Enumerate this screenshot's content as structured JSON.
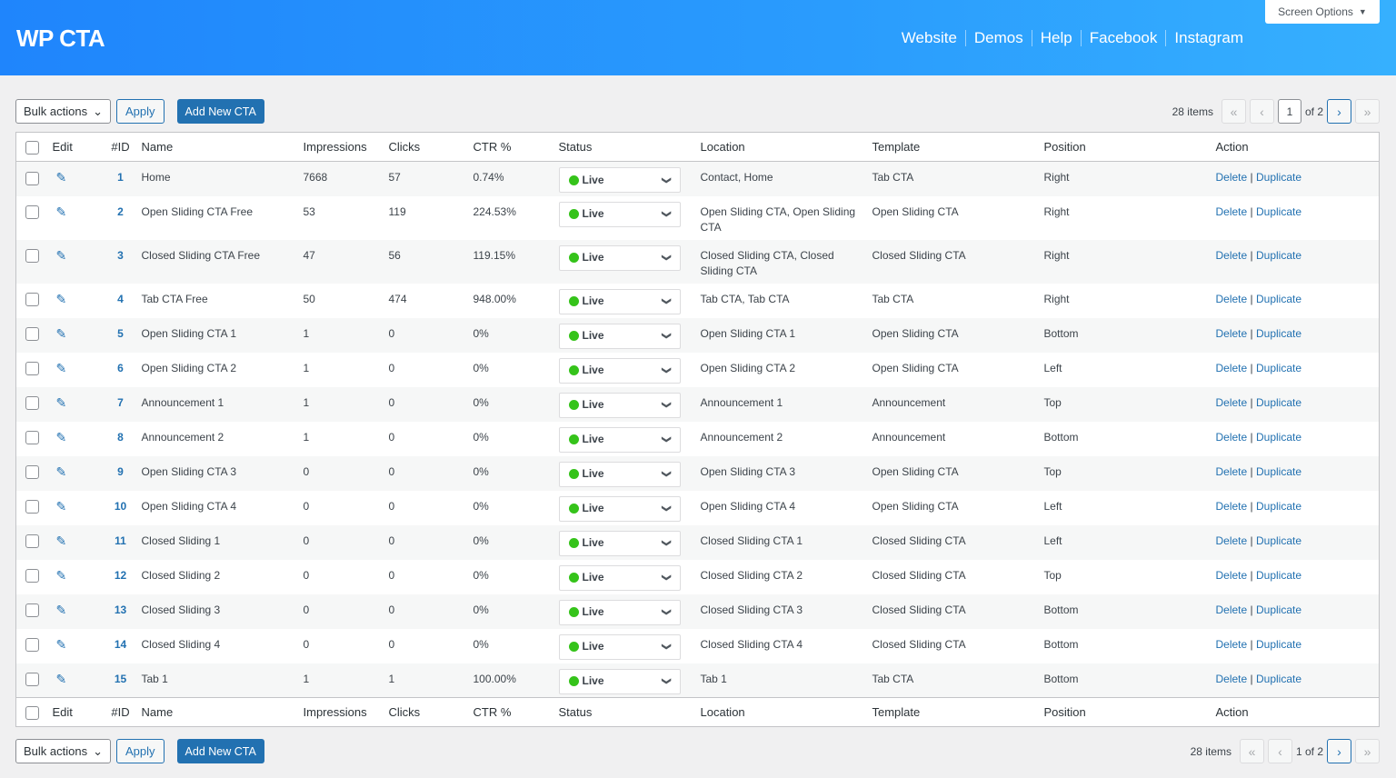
{
  "header": {
    "title": "WP CTA",
    "nav": [
      "Website",
      "Demos",
      "Help",
      "Facebook",
      "Instagram"
    ],
    "screen_options": "Screen Options"
  },
  "toolbar": {
    "bulk_actions": "Bulk actions",
    "apply": "Apply",
    "add_new": "Add New CTA",
    "items": "28 items",
    "page": "1",
    "of": "of 2",
    "bottom_page": "1 of 2"
  },
  "columns": [
    "Edit",
    "#ID",
    "Name",
    "Impressions",
    "Clicks",
    "CTR %",
    "Status",
    "Location",
    "Template",
    "Position",
    "Action"
  ],
  "action": {
    "delete": "Delete",
    "duplicate": "Duplicate"
  },
  "colors": {
    "accent": "#2271b1",
    "live": "#35c31a"
  },
  "rows": [
    {
      "id": "1",
      "name": "Home",
      "impressions": "7668",
      "clicks": "57",
      "ctr": "0.74%",
      "status": "Live",
      "location": "Contact, Home",
      "template": "Tab CTA",
      "position": "Right"
    },
    {
      "id": "2",
      "name": "Open Sliding CTA Free",
      "impressions": "53",
      "clicks": "119",
      "ctr": "224.53%",
      "status": "Live",
      "location": "Open Sliding CTA, Open Sliding CTA",
      "template": "Open Sliding CTA",
      "position": "Right"
    },
    {
      "id": "3",
      "name": "Closed Sliding CTA Free",
      "impressions": "47",
      "clicks": "56",
      "ctr": "119.15%",
      "status": "Live",
      "location": "Closed Sliding CTA, Closed Sliding CTA",
      "template": "Closed Sliding CTA",
      "position": "Right"
    },
    {
      "id": "4",
      "name": "Tab CTA Free",
      "impressions": "50",
      "clicks": "474",
      "ctr": "948.00%",
      "status": "Live",
      "location": "Tab CTA, Tab CTA",
      "template": "Tab CTA",
      "position": "Right"
    },
    {
      "id": "5",
      "name": "Open Sliding CTA 1",
      "impressions": "1",
      "clicks": "0",
      "ctr": "0%",
      "status": "Live",
      "location": "Open Sliding CTA 1",
      "template": "Open Sliding CTA",
      "position": "Bottom"
    },
    {
      "id": "6",
      "name": "Open Sliding CTA 2",
      "impressions": "1",
      "clicks": "0",
      "ctr": "0%",
      "status": "Live",
      "location": "Open Sliding CTA 2",
      "template": "Open Sliding CTA",
      "position": "Left"
    },
    {
      "id": "7",
      "name": "Announcement 1",
      "impressions": "1",
      "clicks": "0",
      "ctr": "0%",
      "status": "Live",
      "location": "Announcement 1",
      "template": "Announcement",
      "position": "Top"
    },
    {
      "id": "8",
      "name": "Announcement 2",
      "impressions": "1",
      "clicks": "0",
      "ctr": "0%",
      "status": "Live",
      "location": "Announcement 2",
      "template": "Announcement",
      "position": "Bottom"
    },
    {
      "id": "9",
      "name": "Open Sliding CTA 3",
      "impressions": "0",
      "clicks": "0",
      "ctr": "0%",
      "status": "Live",
      "location": "Open Sliding CTA 3",
      "template": "Open Sliding CTA",
      "position": "Top"
    },
    {
      "id": "10",
      "name": "Open Sliding CTA 4",
      "impressions": "0",
      "clicks": "0",
      "ctr": "0%",
      "status": "Live",
      "location": "Open Sliding CTA 4",
      "template": "Open Sliding CTA",
      "position": "Left"
    },
    {
      "id": "11",
      "name": "Closed Sliding 1",
      "impressions": "0",
      "clicks": "0",
      "ctr": "0%",
      "status": "Live",
      "location": "Closed Sliding CTA 1",
      "template": "Closed Sliding CTA",
      "position": "Left"
    },
    {
      "id": "12",
      "name": "Closed Sliding 2",
      "impressions": "0",
      "clicks": "0",
      "ctr": "0%",
      "status": "Live",
      "location": "Closed Sliding CTA 2",
      "template": "Closed Sliding CTA",
      "position": "Top"
    },
    {
      "id": "13",
      "name": "Closed Sliding 3",
      "impressions": "0",
      "clicks": "0",
      "ctr": "0%",
      "status": "Live",
      "location": "Closed Sliding CTA 3",
      "template": "Closed Sliding CTA",
      "position": "Bottom"
    },
    {
      "id": "14",
      "name": "Closed Sliding 4",
      "impressions": "0",
      "clicks": "0",
      "ctr": "0%",
      "status": "Live",
      "location": "Closed Sliding CTA 4",
      "template": "Closed Sliding CTA",
      "position": "Bottom"
    },
    {
      "id": "15",
      "name": "Tab 1",
      "impressions": "1",
      "clicks": "1",
      "ctr": "100.00%",
      "status": "Live",
      "location": "Tab 1",
      "template": "Tab CTA",
      "position": "Bottom"
    }
  ]
}
